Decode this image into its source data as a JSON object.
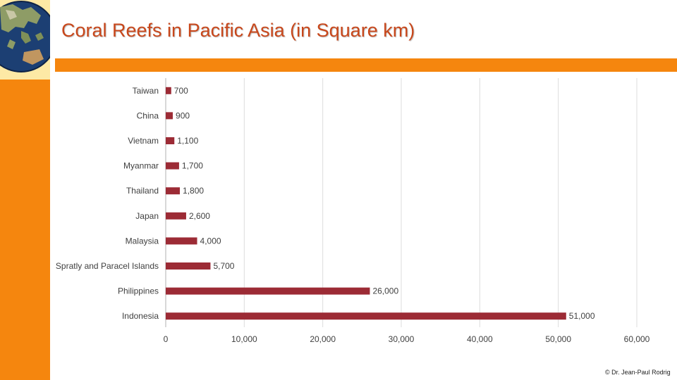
{
  "title": "Coral Reefs in Pacific Asia (in Square km)",
  "copyright": "© Dr. Jean-Paul Rodrig",
  "colors": {
    "accent_orange": "#f5860e",
    "title_red": "#c8471b",
    "bar": "#9c2b35",
    "logo_bg": "#fde9a5"
  },
  "icons": [
    "globe-icon"
  ],
  "chart_data": {
    "type": "bar",
    "orientation": "horizontal",
    "categories": [
      "Taiwan",
      "China",
      "Vietnam",
      "Myanmar",
      "Thailand",
      "Japan",
      "Malaysia",
      "Spratly and Paracel Islands",
      "Philippines",
      "Indonesia"
    ],
    "values": [
      700,
      900,
      1100,
      1700,
      1800,
      2600,
      4000,
      5700,
      26000,
      51000
    ],
    "data_labels": [
      "700",
      "900",
      "1,100",
      "1,700",
      "1,800",
      "2,600",
      "4,000",
      "5,700",
      "26,000",
      "51,000"
    ],
    "xlim": [
      0,
      60000
    ],
    "xticks": [
      0,
      10000,
      20000,
      30000,
      40000,
      50000,
      60000
    ],
    "xtick_labels": [
      "0",
      "10,000",
      "20,000",
      "30,000",
      "40,000",
      "50,000",
      "60,000"
    ],
    "grid": "vertical",
    "legend": "none",
    "xlabel": "",
    "ylabel": ""
  }
}
